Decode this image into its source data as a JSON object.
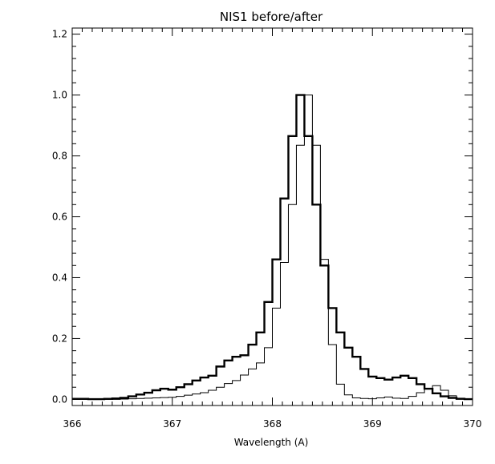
{
  "chart_data": {
    "type": "line",
    "step": true,
    "title": "NIS1  before/after",
    "xlabel": "Wavelength (A)",
    "ylabel": "",
    "xlim": [
      366,
      370
    ],
    "ylim": [
      -0.02,
      1.22
    ],
    "xticks": [
      366,
      367,
      368,
      369,
      370
    ],
    "xtick_labels": [
      "366",
      "367",
      "368",
      "369",
      "370"
    ],
    "yticks": [
      0.0,
      0.2,
      0.4,
      0.6,
      0.8,
      1.0,
      1.2
    ],
    "ytick_labels": [
      "0.0",
      "0.2",
      "0.4",
      "0.6",
      "0.8",
      "1.0",
      "1.2"
    ],
    "grid": false,
    "colors": {
      "line": "#000000",
      "background": "#ffffff"
    },
    "series": [
      {
        "style": "thick",
        "x": [
          366.0,
          366.08,
          366.16,
          366.24,
          366.32,
          366.4,
          366.48,
          366.56,
          366.64,
          366.72,
          366.8,
          366.88,
          366.96,
          367.04,
          367.12,
          367.2,
          367.28,
          367.36,
          367.44,
          367.52,
          367.6,
          367.68,
          367.76,
          367.84,
          367.92,
          368.0,
          368.08,
          368.16,
          368.24,
          368.32,
          368.4,
          368.48,
          368.56,
          368.64,
          368.72,
          368.8,
          368.88,
          368.96,
          369.04,
          369.12,
          369.2,
          369.28,
          369.36,
          369.44,
          369.52,
          369.6,
          369.68,
          369.76,
          369.84,
          369.92
        ],
        "y": [
          0.002,
          0.002,
          0.001,
          0.001,
          0.002,
          0.003,
          0.005,
          0.01,
          0.016,
          0.022,
          0.03,
          0.035,
          0.032,
          0.04,
          0.05,
          0.062,
          0.072,
          0.078,
          0.108,
          0.128,
          0.14,
          0.145,
          0.18,
          0.22,
          0.32,
          0.46,
          0.66,
          0.865,
          1.0,
          0.865,
          0.64,
          0.44,
          0.3,
          0.22,
          0.17,
          0.14,
          0.1,
          0.075,
          0.07,
          0.065,
          0.072,
          0.078,
          0.07,
          0.05,
          0.035,
          0.02,
          0.01,
          0.005,
          0.002,
          0.001
        ]
      },
      {
        "style": "thin",
        "x": [
          366.0,
          366.08,
          366.16,
          366.24,
          366.32,
          366.4,
          366.48,
          366.56,
          366.64,
          366.72,
          366.8,
          366.88,
          366.96,
          367.04,
          367.12,
          367.2,
          367.28,
          367.36,
          367.44,
          367.52,
          367.6,
          367.68,
          367.76,
          367.84,
          367.92,
          368.0,
          368.08,
          368.16,
          368.24,
          368.32,
          368.4,
          368.48,
          368.56,
          368.64,
          368.72,
          368.8,
          368.88,
          368.96,
          369.04,
          369.12,
          369.2,
          369.28,
          369.36,
          369.44,
          369.52,
          369.6,
          369.68,
          369.76,
          369.84,
          369.92
        ],
        "y": [
          0.0,
          0.0,
          0.0,
          0.0,
          0.0,
          0.0,
          0.001,
          0.002,
          0.003,
          0.004,
          0.005,
          0.006,
          0.007,
          0.01,
          0.014,
          0.018,
          0.022,
          0.03,
          0.04,
          0.052,
          0.062,
          0.08,
          0.1,
          0.12,
          0.17,
          0.3,
          0.45,
          0.64,
          0.835,
          1.0,
          0.835,
          0.46,
          0.18,
          0.05,
          0.015,
          0.005,
          0.003,
          0.002,
          0.005,
          0.008,
          0.004,
          0.003,
          0.01,
          0.022,
          0.035,
          0.045,
          0.03,
          0.012,
          0.004,
          0.001
        ]
      }
    ]
  }
}
